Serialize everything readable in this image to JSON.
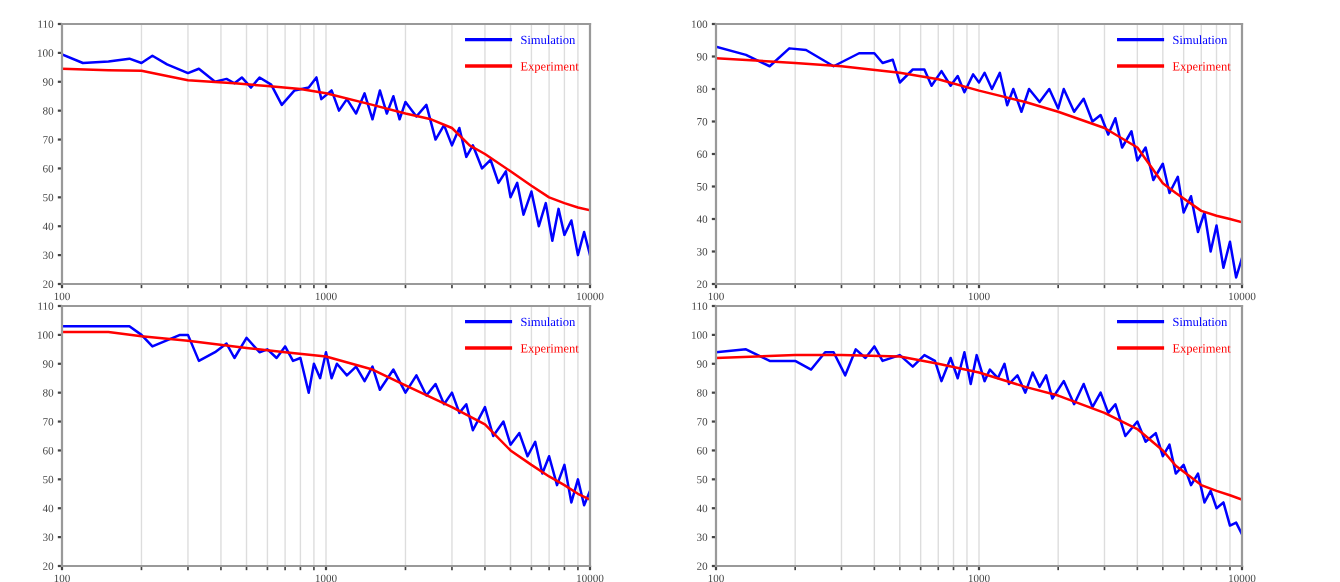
{
  "chart_data": [
    {
      "type": "line",
      "log": "x",
      "grid": "x",
      "legend": "top right",
      "xlim": [
        100,
        10000
      ],
      "xticks": [
        100,
        1000,
        10000
      ],
      "ylim": [
        20,
        110
      ],
      "yticks": [
        20,
        30,
        40,
        50,
        60,
        70,
        80,
        90,
        100,
        110
      ],
      "series": [
        {
          "name": "Simulation",
          "color": "#0000ff",
          "x": [
            100,
            120,
            150,
            180,
            200,
            220,
            250,
            300,
            330,
            380,
            420,
            450,
            480,
            520,
            560,
            620,
            680,
            760,
            860,
            920,
            960,
            1050,
            1120,
            1200,
            1300,
            1400,
            1500,
            1600,
            1700,
            1800,
            1900,
            2000,
            2200,
            2400,
            2600,
            2800,
            3000,
            3200,
            3400,
            3600,
            3900,
            4200,
            4500,
            4800,
            5000,
            5300,
            5600,
            6000,
            6400,
            6800,
            7200,
            7600,
            8000,
            8500,
            9000,
            9500,
            10000
          ],
          "values": [
            99.5,
            96.5,
            97,
            98,
            96.5,
            99,
            96,
            93,
            94.5,
            90,
            91,
            89.5,
            91.5,
            88,
            91.5,
            89,
            82,
            87,
            88,
            91.5,
            84,
            87,
            80,
            84,
            79,
            86,
            77,
            87,
            79,
            85,
            77,
            83,
            78,
            82,
            70,
            75,
            68,
            74,
            64,
            68,
            60,
            63,
            55,
            59,
            50,
            55,
            44,
            52,
            40,
            48,
            35,
            46,
            37,
            42,
            30,
            38,
            30
          ]
        },
        {
          "name": "Experiment",
          "color": "#ff0000",
          "x": [
            100,
            150,
            200,
            250,
            300,
            450,
            600,
            800,
            1000,
            1500,
            2000,
            2500,
            3000,
            3500,
            4000,
            5000,
            6000,
            7000,
            8000,
            9000,
            10000
          ],
          "values": [
            94.5,
            94,
            93.8,
            92,
            90.5,
            89.5,
            88.5,
            87.5,
            86,
            82,
            79,
            77,
            74,
            68,
            65,
            59,
            54,
            50,
            48,
            46.5,
            45.5
          ]
        }
      ]
    },
    {
      "type": "line",
      "log": "x",
      "grid": "x",
      "legend": "top right",
      "xlim": [
        100,
        10000
      ],
      "xticks": [
        100,
        1000,
        10000
      ],
      "ylim": [
        20,
        100
      ],
      "yticks": [
        20,
        30,
        40,
        50,
        60,
        70,
        80,
        90,
        100
      ],
      "series": [
        {
          "name": "Simulation",
          "color": "#0000ff",
          "x": [
            100,
            130,
            160,
            190,
            220,
            280,
            350,
            400,
            430,
            470,
            500,
            560,
            620,
            660,
            720,
            780,
            830,
            880,
            950,
            1000,
            1050,
            1120,
            1200,
            1280,
            1350,
            1450,
            1550,
            1700,
            1850,
            2000,
            2100,
            2300,
            2500,
            2700,
            2900,
            3100,
            3300,
            3500,
            3800,
            4000,
            4300,
            4600,
            5000,
            5300,
            5700,
            6000,
            6400,
            6800,
            7200,
            7600,
            8000,
            8500,
            9000,
            9500,
            10000
          ],
          "values": [
            93,
            90.5,
            87,
            92.5,
            92,
            87,
            91,
            91,
            88,
            89,
            82,
            86,
            86,
            81,
            85.5,
            81,
            84,
            79,
            84.5,
            82,
            85,
            80,
            85,
            75,
            80,
            73,
            80,
            76,
            80,
            74,
            80,
            73,
            77,
            70,
            72,
            66,
            71,
            62,
            67,
            58,
            62,
            52,
            57,
            48,
            53,
            42,
            47,
            36,
            42,
            30,
            38,
            25,
            33,
            22,
            28
          ]
        },
        {
          "name": "Experiment",
          "color": "#ff0000",
          "x": [
            100,
            200,
            300,
            500,
            700,
            1000,
            1500,
            2000,
            3000,
            4000,
            5000,
            5600,
            7000,
            8000,
            9000,
            10000
          ],
          "values": [
            89.5,
            88,
            87,
            85,
            83,
            79.5,
            76,
            73,
            68,
            62,
            51,
            48,
            42.5,
            41,
            40,
            39
          ]
        }
      ]
    },
    {
      "type": "line",
      "log": "x",
      "grid": "x",
      "legend": "top right",
      "xlim": [
        100,
        10000
      ],
      "xticks": [
        100,
        1000,
        10000
      ],
      "ylim": [
        20,
        110
      ],
      "yticks": [
        20,
        30,
        40,
        50,
        60,
        70,
        80,
        90,
        100,
        110
      ],
      "series": [
        {
          "name": "Simulation",
          "color": "#0000ff",
          "x": [
            100,
            150,
            180,
            200,
            220,
            280,
            300,
            330,
            380,
            420,
            450,
            500,
            560,
            600,
            650,
            700,
            750,
            800,
            860,
            900,
            950,
            1000,
            1050,
            1100,
            1200,
            1300,
            1400,
            1500,
            1600,
            1800,
            2000,
            2200,
            2400,
            2600,
            2800,
            3000,
            3200,
            3400,
            3600,
            4000,
            4300,
            4700,
            5000,
            5400,
            5800,
            6200,
            6600,
            7000,
            7500,
            8000,
            8500,
            9000,
            9500,
            10000
          ],
          "values": [
            103,
            103,
            103,
            100,
            96,
            100,
            100,
            91,
            94,
            97,
            92,
            99,
            94,
            95,
            92,
            96,
            91,
            92,
            80,
            90,
            85,
            94,
            85,
            90,
            86,
            89,
            84,
            89,
            81,
            88,
            80,
            86,
            79,
            83,
            76,
            80,
            73,
            76,
            67,
            75,
            65,
            70,
            62,
            66,
            58,
            63,
            52,
            58,
            48,
            55,
            42,
            50,
            41,
            46
          ]
        },
        {
          "name": "Experiment",
          "color": "#ff0000",
          "x": [
            100,
            150,
            200,
            300,
            500,
            700,
            1000,
            1500,
            2000,
            3000,
            4000,
            5000,
            6000,
            7000,
            8000,
            9000,
            10000
          ],
          "values": [
            101,
            101,
            99.5,
            98,
            95.5,
            94,
            92.5,
            88,
            82.5,
            75,
            69,
            60,
            55,
            51,
            48,
            45,
            43
          ]
        }
      ]
    },
    {
      "type": "line",
      "log": "x",
      "grid": "x",
      "legend": "top right",
      "xlim": [
        100,
        10000
      ],
      "xticks": [
        100,
        1000,
        10000
      ],
      "ylim": [
        20,
        110
      ],
      "yticks": [
        20,
        30,
        40,
        50,
        60,
        70,
        80,
        90,
        100,
        110
      ],
      "series": [
        {
          "name": "Simulation",
          "color": "#0000ff",
          "x": [
            100,
            130,
            160,
            200,
            230,
            260,
            280,
            310,
            340,
            370,
            400,
            430,
            500,
            560,
            620,
            680,
            720,
            780,
            830,
            880,
            930,
            980,
            1050,
            1100,
            1180,
            1250,
            1300,
            1400,
            1500,
            1600,
            1700,
            1800,
            1900,
            2100,
            2300,
            2500,
            2700,
            2900,
            3100,
            3300,
            3600,
            4000,
            4300,
            4700,
            5000,
            5300,
            5600,
            6000,
            6400,
            6800,
            7200,
            7600,
            8000,
            8500,
            9000,
            9500,
            10000
          ],
          "values": [
            94,
            95,
            91,
            91,
            88,
            94,
            94,
            86,
            95,
            92,
            96,
            91,
            93,
            89,
            93,
            91,
            84,
            92,
            85,
            94,
            83,
            93,
            84,
            88,
            85,
            90,
            83,
            86,
            80,
            87,
            82,
            86,
            78,
            84,
            76,
            83,
            75,
            80,
            73,
            76,
            65,
            70,
            63,
            66,
            58,
            62,
            52,
            55,
            48,
            52,
            42,
            46,
            40,
            42,
            34,
            35,
            31
          ]
        },
        {
          "name": "Experiment",
          "color": "#ff0000",
          "x": [
            100,
            200,
            300,
            500,
            700,
            1000,
            1500,
            2000,
            3000,
            4000,
            5000,
            5600,
            7000,
            8000,
            9000,
            10000
          ],
          "values": [
            92,
            93,
            93,
            92.5,
            90,
            87,
            82,
            79,
            73,
            67.4,
            60,
            54.7,
            48,
            46,
            44.5,
            43
          ]
        }
      ]
    }
  ]
}
